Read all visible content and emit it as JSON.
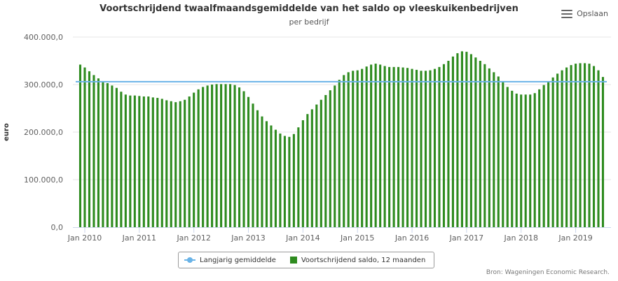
{
  "title": "Voortschrijdend twaalfmaandsgemiddelde van het saldo op vleeskuikenbedrijven",
  "subtitle": "per bedrijf",
  "menu": {
    "save_label": "Opslaan"
  },
  "credits": "Bron: Wageningen Economic Research.",
  "colors": {
    "bars": "#2e8b1f",
    "average_line": "#69b3e7",
    "grid": "#e6e6e6",
    "axis": "#ccd6eb"
  },
  "legend": {
    "line_label": "Langjarig gemiddelde",
    "bar_label": "Voortschrijdend saldo, 12 maanden"
  },
  "chart_data": {
    "type": "bar",
    "ylabel": "euro",
    "ylim": [
      0,
      400000
    ],
    "y_ticks": [
      "0,0",
      "100.000,0",
      "200.000,0",
      "300.000,0",
      "400.000,0"
    ],
    "x_ticks": [
      "Jan 2010",
      "Jan 2011",
      "Jan 2012",
      "Jan 2013",
      "Jan 2014",
      "Jan 2015",
      "Jan 2016",
      "Jan 2017",
      "Jan 2018",
      "Jan 2019"
    ],
    "start": "2009-12",
    "end": "2019-01",
    "reference_line": {
      "name": "Langjarig gemiddelde",
      "value": 306000
    },
    "series": [
      {
        "name": "Voortschrijdend saldo, 12 maanden",
        "values": [
          342000,
          336000,
          328000,
          320000,
          313000,
          307000,
          303000,
          298000,
          293000,
          285000,
          279000,
          277000,
          277000,
          276000,
          275000,
          275000,
          273000,
          272000,
          270000,
          267000,
          265000,
          263000,
          265000,
          268000,
          275000,
          283000,
          290000,
          295000,
          298000,
          300000,
          301000,
          301000,
          301000,
          301000,
          299000,
          294000,
          286000,
          274000,
          260000,
          246000,
          233000,
          223000,
          214000,
          205000,
          197000,
          192000,
          190000,
          196000,
          210000,
          225000,
          238000,
          248000,
          258000,
          268000,
          278000,
          288000,
          298000,
          310000,
          320000,
          326000,
          329000,
          330000,
          333000,
          338000,
          342000,
          344000,
          342000,
          339000,
          337000,
          337000,
          337000,
          336000,
          335000,
          333000,
          331000,
          329000,
          329000,
          330000,
          333000,
          337000,
          343000,
          350000,
          359000,
          366000,
          370000,
          369000,
          364000,
          357000,
          350000,
          343000,
          334000,
          326000,
          317000,
          306000,
          295000,
          287000,
          281000,
          279000,
          279000,
          279000,
          282000,
          290000,
          299000,
          307000,
          315000,
          323000,
          330000,
          336000,
          341000,
          344000,
          345000,
          345000,
          344000,
          339000,
          330000,
          316000
        ]
      }
    ]
  }
}
